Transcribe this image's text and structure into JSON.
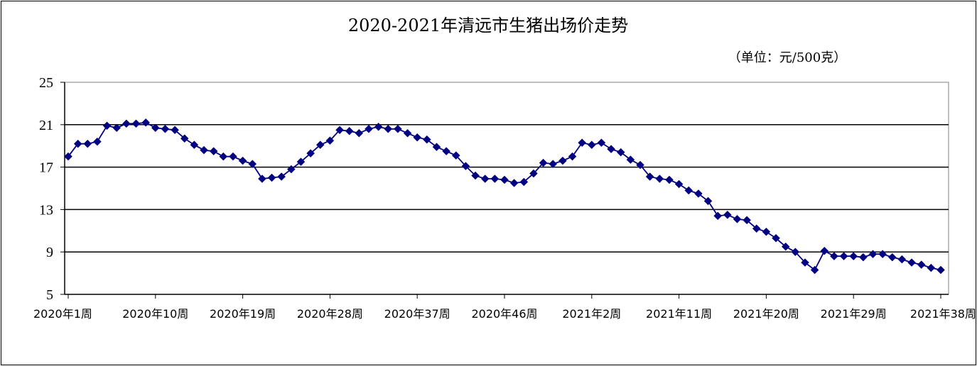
{
  "chart_data": {
    "type": "line",
    "title": "2020-2021年清远市生猪出场价走势",
    "unit_note": "（单位：元/500克）",
    "xlabel": "",
    "ylabel": "",
    "ylim": [
      5,
      25
    ],
    "yticks": [
      5,
      9,
      13,
      17,
      21,
      25
    ],
    "grid": "horizontal",
    "legend": "none",
    "series_color": "#000080",
    "x_tick_labels": [
      {
        "index": 0,
        "label": "2020年1周"
      },
      {
        "index": 9,
        "label": "2020年10周"
      },
      {
        "index": 18,
        "label": "2020年19周"
      },
      {
        "index": 27,
        "label": "2020年28周"
      },
      {
        "index": 36,
        "label": "2020年37周"
      },
      {
        "index": 45,
        "label": "2020年46周"
      },
      {
        "index": 54,
        "label": "2021年2周"
      },
      {
        "index": 63,
        "label": "2021年11周"
      },
      {
        "index": 72,
        "label": "2021年20周"
      },
      {
        "index": 81,
        "label": "2021年29周"
      },
      {
        "index": 90,
        "label": "2021年38周"
      }
    ],
    "values": [
      18.0,
      19.2,
      19.2,
      19.4,
      20.9,
      20.7,
      21.1,
      21.1,
      21.2,
      20.7,
      20.6,
      20.5,
      19.7,
      19.1,
      18.6,
      18.5,
      18.0,
      18.0,
      17.6,
      17.3,
      15.9,
      16.0,
      16.1,
      16.8,
      17.5,
      18.3,
      19.1,
      19.5,
      20.5,
      20.4,
      20.2,
      20.6,
      20.8,
      20.6,
      20.6,
      20.2,
      19.8,
      19.6,
      18.9,
      18.5,
      18.1,
      17.1,
      16.2,
      15.9,
      15.9,
      15.8,
      15.5,
      15.6,
      16.4,
      17.4,
      17.3,
      17.6,
      18.0,
      19.3,
      19.1,
      19.3,
      18.7,
      18.4,
      17.7,
      17.2,
      16.1,
      15.9,
      15.8,
      15.4,
      14.8,
      14.5,
      13.8,
      12.4,
      12.5,
      12.1,
      12.0,
      11.2,
      10.9,
      10.3,
      9.5,
      9.0,
      8.0,
      7.3,
      9.1,
      8.6,
      8.6,
      8.6,
      8.5,
      8.8,
      8.8,
      8.5,
      8.3,
      8.0,
      7.8,
      7.5,
      7.3
    ]
  }
}
